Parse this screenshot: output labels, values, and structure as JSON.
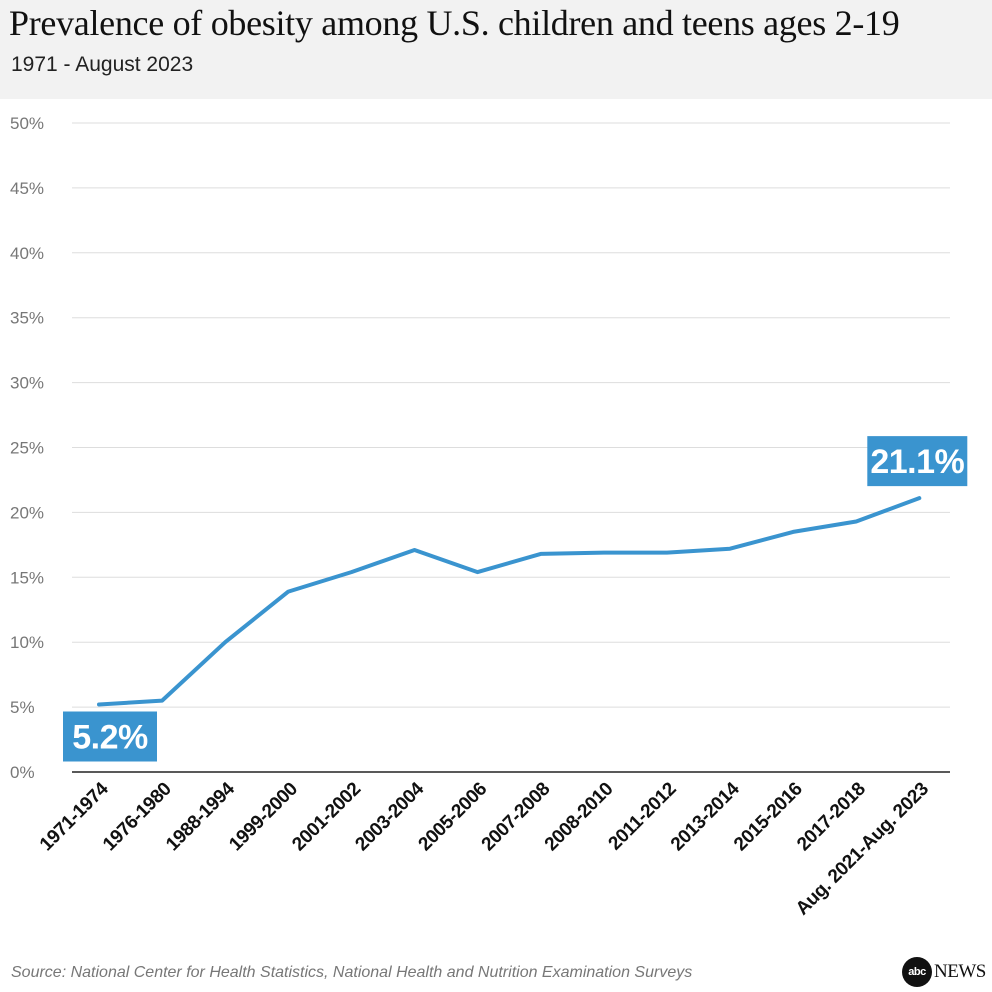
{
  "header": {
    "title": "Prevalence of obesity among U.S. children and teens ages 2-19",
    "subtitle": "1971 - August 2023"
  },
  "footer": {
    "source": "Source: National Center for Health Statistics, National Health and Nutrition Examination Surveys",
    "brand_circle": "abc",
    "brand_text": "NEWS"
  },
  "colors": {
    "line": "#3a94cf",
    "label_bg": "#3a94cf",
    "grid": "#dddddd",
    "axis": "#222222",
    "header_bg": "#f2f2f2"
  },
  "chart_data": {
    "type": "line",
    "title": "Prevalence of obesity among U.S. children and teens ages 2-19",
    "subtitle": "1971 - August 2023",
    "xlabel": "",
    "ylabel": "",
    "ylim": [
      0,
      50
    ],
    "yticks": [
      0,
      5,
      10,
      15,
      20,
      25,
      30,
      35,
      40,
      45,
      50
    ],
    "ytick_labels": [
      "0%",
      "5%",
      "10%",
      "15%",
      "20%",
      "25%",
      "30%",
      "35%",
      "40%",
      "45%",
      "50%"
    ],
    "grid": true,
    "categories": [
      "1971-1974",
      "1976-1980",
      "1988-1994",
      "1999-2000",
      "2001-2002",
      "2003-2004",
      "2005-2006",
      "2007-2008",
      "2008-2010",
      "2011-2012",
      "2013-2014",
      "2015-2016",
      "2017-2018",
      "Aug. 2021-Aug. 2023"
    ],
    "series": [
      {
        "values": [
          5.2,
          5.5,
          10.0,
          13.9,
          15.4,
          17.1,
          15.4,
          16.8,
          16.9,
          16.9,
          17.2,
          18.5,
          19.3,
          21.1
        ]
      }
    ],
    "annotations": [
      {
        "index": 0,
        "text": "5.2%",
        "position": "below-left"
      },
      {
        "index": 13,
        "text": "21.1%",
        "position": "above"
      }
    ]
  }
}
